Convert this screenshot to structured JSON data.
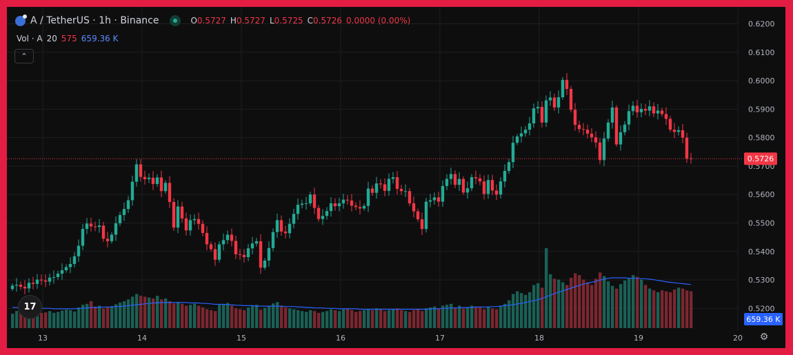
{
  "header": {
    "symbol": "A / TetherUS · 1h · Binance",
    "o_label": "O",
    "o_value": "0.5727",
    "h_label": "H",
    "h_value": "0.5727",
    "l_label": "L",
    "l_value": "0.5725",
    "c_label": "C",
    "c_value": "0.5726",
    "change": "0.0000 (0.00%)"
  },
  "volume_legend": {
    "label": "Vol · A",
    "length": "20",
    "last_volume": "575",
    "ma_value": "659.36 K"
  },
  "logo_text": "17",
  "icons": {
    "collapse": "chevron-up-icon",
    "settings": "gear-icon",
    "logo": "tradingview-logo-icon"
  },
  "colors": {
    "up": "#22ab94",
    "down": "#f23645",
    "ma": "#2962ff",
    "background": "#0e0e0f",
    "frame": "#e31c44"
  },
  "chart_data": {
    "type": "candlestick",
    "title": "A / TetherUS · 1h · Binance",
    "y_ticks": [
      "0.6200",
      "0.6100",
      "0.6000",
      "0.5900",
      "0.5800",
      "0.5700",
      "0.5600",
      "0.5500",
      "0.5400",
      "0.5300",
      "0.5200"
    ],
    "ylim": [
      0.515,
      0.624
    ],
    "x_ticks": [
      "13",
      "14",
      "15",
      "16",
      "17",
      "18",
      "19",
      "20"
    ],
    "last_price": "0.5726",
    "volume_badge": "659.36 K",
    "closes": [
      0.528,
      0.5283,
      0.5276,
      0.527,
      0.529,
      0.5286,
      0.5301,
      0.5298,
      0.5294,
      0.5308,
      0.531,
      0.5322,
      0.5334,
      0.5345,
      0.5356,
      0.5383,
      0.542,
      0.5479,
      0.5498,
      0.5488,
      0.5486,
      0.5491,
      0.5445,
      0.5436,
      0.5459,
      0.5499,
      0.5528,
      0.5549,
      0.558,
      0.5645,
      0.5706,
      0.5662,
      0.5654,
      0.5659,
      0.5637,
      0.566,
      0.5612,
      0.5641,
      0.5574,
      0.5484,
      0.5558,
      0.5516,
      0.5474,
      0.551,
      0.5514,
      0.5497,
      0.5465,
      0.5425,
      0.5408,
      0.5371,
      0.5425,
      0.544,
      0.5459,
      0.5437,
      0.539,
      0.5388,
      0.538,
      0.5411,
      0.5428,
      0.5436,
      0.5343,
      0.5368,
      0.5412,
      0.5468,
      0.551,
      0.547,
      0.5464,
      0.5497,
      0.5532,
      0.5564,
      0.5568,
      0.5569,
      0.56,
      0.5553,
      0.5514,
      0.5525,
      0.5542,
      0.5569,
      0.5559,
      0.5569,
      0.5582,
      0.5579,
      0.5561,
      0.5556,
      0.5551,
      0.556,
      0.5621,
      0.5606,
      0.5639,
      0.5636,
      0.5613,
      0.5655,
      0.5661,
      0.562,
      0.5612,
      0.5612,
      0.5569,
      0.5541,
      0.5513,
      0.5479,
      0.5575,
      0.558,
      0.559,
      0.5575,
      0.563,
      0.5655,
      0.5672,
      0.5634,
      0.5655,
      0.5607,
      0.5622,
      0.5661,
      0.5657,
      0.5646,
      0.5602,
      0.5651,
      0.5614,
      0.56,
      0.5646,
      0.5683,
      0.5714,
      0.5782,
      0.5804,
      0.5815,
      0.5828,
      0.585,
      0.5903,
      0.5908,
      0.5853,
      0.5931,
      0.5941,
      0.5906,
      0.5942,
      0.6003,
      0.5971,
      0.5898,
      0.5845,
      0.583,
      0.5828,
      0.5814,
      0.5801,
      0.5783,
      0.5721,
      0.5797,
      0.5853,
      0.5906,
      0.5776,
      0.5819,
      0.5846,
      0.5893,
      0.5912,
      0.5889,
      0.5901,
      0.5895,
      0.591,
      0.5885,
      0.5895,
      0.5883,
      0.5866,
      0.5828,
      0.582,
      0.5826,
      0.58,
      0.5727,
      0.5726
    ],
    "volumes": [
      32,
      38,
      34,
      30,
      40,
      36,
      30,
      34,
      35,
      38,
      34,
      36,
      39,
      41,
      40,
      37,
      46,
      52,
      54,
      60,
      48,
      50,
      44,
      46,
      49,
      53,
      57,
      60,
      64,
      70,
      76,
      72,
      70,
      68,
      66,
      72,
      64,
      66,
      60,
      55,
      58,
      54,
      50,
      52,
      54,
      50,
      46,
      42,
      40,
      38,
      52,
      54,
      56,
      50,
      44,
      42,
      40,
      46,
      50,
      52,
      41,
      45,
      50,
      55,
      58,
      50,
      46,
      44,
      42,
      40,
      38,
      36,
      40,
      38,
      34,
      36,
      38,
      42,
      40,
      38,
      42,
      44,
      40,
      36,
      38,
      40,
      42,
      40,
      44,
      42,
      38,
      40,
      42,
      44,
      40,
      38,
      36,
      40,
      42,
      38,
      44,
      46,
      48,
      44,
      50,
      52,
      54,
      46,
      50,
      44,
      46,
      50,
      48,
      46,
      42,
      48,
      44,
      42,
      50,
      54,
      62,
      76,
      82,
      78,
      74,
      80,
      96,
      100,
      90,
      178,
      120,
      110,
      108,
      102,
      96,
      112,
      122,
      118,
      108,
      102,
      96,
      110,
      124,
      116,
      104,
      94,
      88,
      98,
      106,
      112,
      118,
      114,
      108,
      96,
      88,
      84,
      80,
      84,
      82,
      80,
      86,
      90,
      88,
      84,
      82
    ],
    "volume_ma": [
      46,
      46,
      45,
      45,
      45,
      44,
      44,
      44,
      44,
      44,
      43,
      43,
      43,
      43,
      43,
      43,
      44,
      44,
      45,
      46,
      46,
      46,
      47,
      47,
      47,
      48,
      48,
      49,
      50,
      51,
      52,
      53,
      54,
      55,
      56,
      56,
      57,
      57,
      57,
      57,
      57,
      57,
      57,
      56,
      56,
      56,
      55,
      55,
      54,
      53,
      53,
      53,
      52,
      52,
      51,
      51,
      50,
      50,
      50,
      49,
      49,
      49,
      49,
      49,
      49,
      49,
      48,
      48,
      48,
      47,
      47,
      46,
      46,
      45,
      45,
      45,
      44,
      44,
      44,
      43,
      43,
      43,
      43,
      43,
      42,
      42,
      42,
      42,
      42,
      42,
      42,
      42,
      42,
      42,
      42,
      42,
      42,
      42,
      42,
      42,
      42,
      43,
      43,
      43,
      44,
      44,
      45,
      45,
      45,
      46,
      46,
      46,
      47,
      47,
      47,
      47,
      48,
      48,
      49,
      50,
      51,
      52,
      54,
      55,
      57,
      59,
      61,
      63,
      66,
      70,
      73,
      77,
      80,
      83,
      86,
      89,
      92,
      95,
      98,
      100,
      102,
      104,
      107,
      109,
      111,
      112,
      112,
      112,
      112,
      111,
      111,
      111,
      110,
      110,
      109,
      108,
      106,
      105,
      103,
      102,
      101,
      100,
      99,
      98,
      97
    ]
  }
}
